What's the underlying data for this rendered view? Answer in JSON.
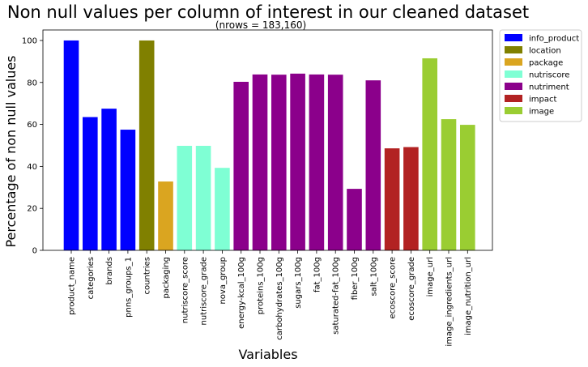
{
  "chart_data": {
    "type": "bar",
    "title": "Non null values per column of interest in our cleaned dataset",
    "subtitle": "(nrows = 183,160)",
    "xlabel": "Variables",
    "ylabel": "Percentage of non null values",
    "ylim": [
      0,
      105
    ],
    "yticks": [
      0,
      20,
      40,
      60,
      80,
      100
    ],
    "grid": false,
    "legend_position": "outside-top-right",
    "legend": [
      {
        "name": "info_product",
        "color": "#0000ff"
      },
      {
        "name": "location",
        "color": "#808000"
      },
      {
        "name": "package",
        "color": "#daa520"
      },
      {
        "name": "nutriscore",
        "color": "#7fffd4"
      },
      {
        "name": "nutriment",
        "color": "#8b008b"
      },
      {
        "name": "impact",
        "color": "#b22222"
      },
      {
        "name": "image",
        "color": "#9acd32"
      }
    ],
    "bars": [
      {
        "category": "product_name",
        "value": 100,
        "group": "info_product"
      },
      {
        "category": "categories",
        "value": 63.5,
        "group": "info_product"
      },
      {
        "category": "brands",
        "value": 67.5,
        "group": "info_product"
      },
      {
        "category": "pnns_groups_1",
        "value": 57.5,
        "group": "info_product"
      },
      {
        "category": "countries",
        "value": 100,
        "group": "location"
      },
      {
        "category": "packaging",
        "value": 32.8,
        "group": "package"
      },
      {
        "category": "nutriscore_score",
        "value": 49.8,
        "group": "nutriscore"
      },
      {
        "category": "nutriscore_grade",
        "value": 49.8,
        "group": "nutriscore"
      },
      {
        "category": "nova_group",
        "value": 39.3,
        "group": "nutriscore"
      },
      {
        "category": "energy-kcal_100g",
        "value": 80.3,
        "group": "nutriment"
      },
      {
        "category": "proteins_100g",
        "value": 83.8,
        "group": "nutriment"
      },
      {
        "category": "carbohydrates_100g",
        "value": 83.7,
        "group": "nutriment"
      },
      {
        "category": "sugars_100g",
        "value": 84.2,
        "group": "nutriment"
      },
      {
        "category": "fat_100g",
        "value": 83.8,
        "group": "nutriment"
      },
      {
        "category": "saturated-fat_100g",
        "value": 83.7,
        "group": "nutriment"
      },
      {
        "category": "fiber_100g",
        "value": 29.3,
        "group": "nutriment"
      },
      {
        "category": "salt_100g",
        "value": 81.0,
        "group": "nutriment"
      },
      {
        "category": "ecoscore_score",
        "value": 48.6,
        "group": "impact"
      },
      {
        "category": "ecoscore_grade",
        "value": 49.2,
        "group": "impact"
      },
      {
        "category": "image_url",
        "value": 91.5,
        "group": "image"
      },
      {
        "category": "image_ingredients_url",
        "value": 62.5,
        "group": "image"
      },
      {
        "category": "image_nutrition_url",
        "value": 59.8,
        "group": "image"
      }
    ]
  }
}
